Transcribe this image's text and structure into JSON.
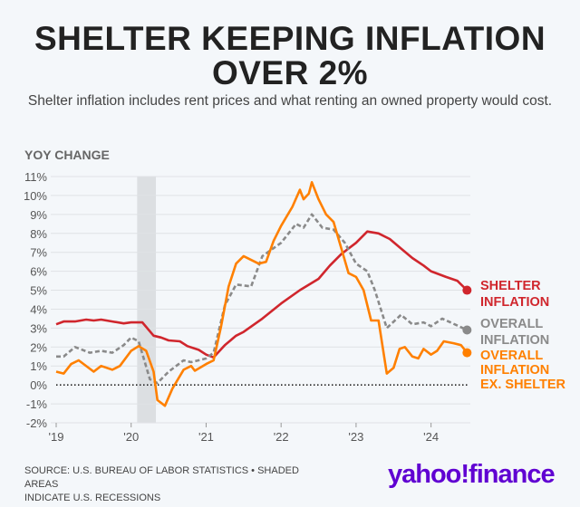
{
  "chart_data": {
    "type": "line",
    "title": "SHELTER KEEPING INFLATION OVER 2%",
    "subtitle": "Shelter inflation includes rent prices and what renting an owned property would cost.",
    "ylabel": "YOY CHANGE",
    "xlabel": "",
    "ylim": [
      -2,
      11
    ],
    "xlim": [
      2019,
      2024.5
    ],
    "yticks": [
      -2,
      -1,
      0,
      1,
      2,
      3,
      4,
      5,
      6,
      7,
      8,
      9,
      10,
      11
    ],
    "ytick_labels": [
      "-2%",
      "-1%",
      "0%",
      "1%",
      "2%",
      "3%",
      "4%",
      "5%",
      "6%",
      "7%",
      "8%",
      "9%",
      "10%",
      "11%"
    ],
    "xticks": [
      2019,
      2020,
      2021,
      2022,
      2023,
      2024
    ],
    "xtick_labels": [
      "'19",
      "'20",
      "'21",
      "'22",
      "'23",
      "'24"
    ],
    "grid": true,
    "recessions": [
      [
        2020.08,
        2020.33
      ]
    ],
    "series": [
      {
        "name": "SHELTER INFLATION",
        "label_lines": [
          "SHELTER",
          "INFLATION"
        ],
        "color": "#d0262d",
        "style": "solid",
        "x": [
          2019.0,
          2019.1,
          2019.25,
          2019.4,
          2019.5,
          2019.6,
          2019.75,
          2019.9,
          2020.0,
          2020.15,
          2020.3,
          2020.4,
          2020.5,
          2020.65,
          2020.75,
          2020.9,
          2021.0,
          2021.1,
          2021.25,
          2021.4,
          2021.5,
          2021.75,
          2022.0,
          2022.25,
          2022.5,
          2022.65,
          2022.8,
          2023.0,
          2023.15,
          2023.3,
          2023.45,
          2023.6,
          2023.75,
          2023.9,
          2024.0,
          2024.2,
          2024.35,
          2024.48
        ],
        "y": [
          3.2,
          3.35,
          3.35,
          3.45,
          3.4,
          3.45,
          3.35,
          3.25,
          3.3,
          3.3,
          2.6,
          2.5,
          2.35,
          2.3,
          2.05,
          1.85,
          1.6,
          1.45,
          2.1,
          2.6,
          2.8,
          3.5,
          4.3,
          5.0,
          5.6,
          6.3,
          6.9,
          7.5,
          8.1,
          8.0,
          7.7,
          7.2,
          6.7,
          6.3,
          6.0,
          5.7,
          5.5,
          5.0
        ]
      },
      {
        "name": "OVERALL INFLATION",
        "label_lines": [
          "OVERALL",
          "INFLATION"
        ],
        "color": "#8a8a8a",
        "style": "dashed",
        "x": [
          2019.0,
          2019.1,
          2019.25,
          2019.45,
          2019.6,
          2019.75,
          2019.9,
          2020.0,
          2020.1,
          2020.25,
          2020.35,
          2020.5,
          2020.7,
          2020.8,
          2020.9,
          2021.0,
          2021.1,
          2021.25,
          2021.4,
          2021.6,
          2021.75,
          2022.0,
          2022.2,
          2022.3,
          2022.41,
          2022.55,
          2022.7,
          2022.85,
          2023.0,
          2023.15,
          2023.25,
          2023.41,
          2023.6,
          2023.75,
          2023.9,
          2024.0,
          2024.15,
          2024.48
        ],
        "y": [
          1.5,
          1.5,
          2.0,
          1.7,
          1.8,
          1.7,
          2.1,
          2.5,
          2.3,
          0.3,
          0.1,
          0.7,
          1.3,
          1.2,
          1.3,
          1.4,
          1.7,
          4.2,
          5.3,
          5.2,
          6.8,
          7.5,
          8.5,
          8.3,
          9.0,
          8.3,
          8.2,
          7.5,
          6.4,
          6.0,
          5.0,
          3.0,
          3.7,
          3.2,
          3.3,
          3.1,
          3.5,
          2.9
        ]
      },
      {
        "name": "OVERALL INFLATION EX. SHELTER",
        "label_lines": [
          "OVERALL",
          "INFLATION",
          "EX. SHELTER"
        ],
        "color": "#ff8000",
        "style": "solid",
        "x": [
          2019.0,
          2019.1,
          2019.2,
          2019.3,
          2019.5,
          2019.6,
          2019.75,
          2019.85,
          2020.0,
          2020.1,
          2020.2,
          2020.3,
          2020.35,
          2020.45,
          2020.55,
          2020.7,
          2020.8,
          2020.85,
          2021.0,
          2021.1,
          2021.2,
          2021.3,
          2021.4,
          2021.5,
          2021.7,
          2021.8,
          2021.9,
          2022.0,
          2022.15,
          2022.25,
          2022.3,
          2022.37,
          2022.41,
          2022.5,
          2022.6,
          2022.7,
          2022.9,
          2023.0,
          2023.1,
          2023.2,
          2023.3,
          2023.41,
          2023.5,
          2023.58,
          2023.65,
          2023.75,
          2023.83,
          2023.9,
          2024.0,
          2024.08,
          2024.17,
          2024.3,
          2024.4,
          2024.48
        ],
        "y": [
          0.7,
          0.6,
          1.1,
          1.3,
          0.7,
          1.0,
          0.8,
          1.0,
          1.8,
          2.05,
          1.8,
          0.7,
          -0.8,
          -1.1,
          -0.2,
          0.8,
          1.0,
          0.75,
          1.1,
          1.3,
          3.1,
          5.2,
          6.4,
          6.8,
          6.4,
          6.5,
          7.6,
          8.4,
          9.4,
          10.3,
          9.8,
          10.1,
          10.7,
          9.8,
          9.0,
          8.6,
          5.9,
          5.7,
          5.0,
          3.4,
          3.4,
          0.6,
          0.9,
          1.9,
          2.0,
          1.5,
          1.4,
          1.9,
          1.6,
          1.8,
          2.3,
          2.2,
          2.1,
          1.7
        ]
      }
    ]
  },
  "footer": {
    "source_line1": "SOURCE: U.S. BUREAU OF LABOR STATISTICS • SHADED AREAS",
    "source_line2": "INDICATE U.S. RECESSIONS",
    "logo": "yahoo!finance"
  }
}
